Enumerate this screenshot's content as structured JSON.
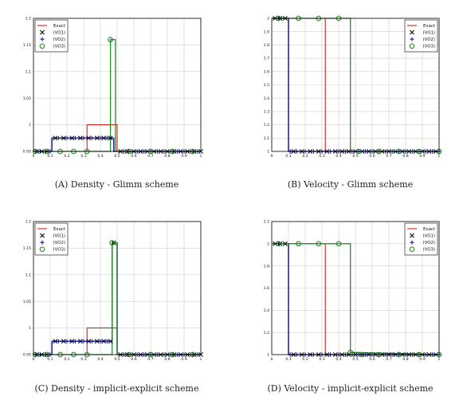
{
  "figure": {
    "captions": [
      "(A) Density - Glimm scheme",
      "(B) Velocity - Glimm scheme",
      "(C) Density - implicit-explicit scheme",
      "(D) Velocity - implicit-explicit scheme"
    ]
  },
  "chart_data": [
    {
      "id": "a",
      "type": "line",
      "title": "",
      "xlabel": "",
      "ylabel": "",
      "xlim": [
        0,
        1
      ],
      "ylim": [
        0.95,
        1.2
      ],
      "xticks": [
        "0",
        "0.1",
        "0.2",
        "0.3",
        "0.4",
        "0.5",
        "0.6",
        "0.7",
        "0.8",
        "0.9",
        "1"
      ],
      "yticks": [
        "0.95",
        "1",
        "1.05",
        "1.1",
        "1.15",
        "1.2"
      ],
      "grid": true,
      "legend_position": "top-left",
      "legend": [
        "Exact",
        "(VO1)",
        "(VO2)",
        "(VO3)"
      ],
      "series": [
        {
          "name": "Exact",
          "color": "#d42020",
          "style": "line",
          "x": [
            0,
            0.32,
            0.32,
            0.5,
            0.5,
            1
          ],
          "y": [
            0.95,
            0.95,
            1.0,
            1.0,
            0.95,
            0.95
          ]
        },
        {
          "name": "(VO1)",
          "color": "#111111",
          "style": "line+x",
          "x": [
            0,
            0.11,
            0.11,
            0.48,
            0.48,
            1
          ],
          "y": [
            0.95,
            0.95,
            0.975,
            0.975,
            0.95,
            0.95
          ],
          "markers_x": [
            0.02,
            0.05,
            0.08,
            0.13,
            0.18,
            0.23,
            0.28,
            0.33,
            0.38,
            0.42,
            0.46,
            0.52,
            0.56,
            0.6,
            0.64,
            0.68,
            0.72,
            0.76,
            0.8,
            0.84,
            0.88,
            0.92,
            0.96,
            1.0
          ]
        },
        {
          "name": "(VO2)",
          "color": "#1a1ab0",
          "style": "line+plus",
          "x": [
            0,
            0.11,
            0.11,
            0.48,
            0.48,
            1
          ],
          "y": [
            0.95,
            0.95,
            0.975,
            0.975,
            0.95,
            0.95
          ],
          "markers_x": [
            0.04,
            0.1,
            0.15,
            0.2,
            0.25,
            0.3,
            0.35,
            0.4,
            0.44,
            0.54,
            0.58,
            0.62,
            0.66,
            0.7,
            0.74,
            0.78,
            0.82,
            0.86,
            0.9,
            0.94,
            0.98
          ]
        },
        {
          "name": "(VO3)",
          "color": "#2a8a2a",
          "style": "line+o",
          "x": [
            0,
            0.46,
            0.46,
            0.49,
            0.49,
            1
          ],
          "y": [
            0.95,
            0.95,
            1.16,
            1.16,
            0.95,
            0.95
          ],
          "markers": [
            [
              0.01,
              0.95
            ],
            [
              0.08,
              0.95
            ],
            [
              0.16,
              0.95
            ],
            [
              0.24,
              0.95
            ],
            [
              0.32,
              0.95
            ],
            [
              0.46,
              1.16
            ],
            [
              0.57,
              0.95
            ],
            [
              0.7,
              0.95
            ],
            [
              0.83,
              0.95
            ],
            [
              0.95,
              0.95
            ]
          ]
        }
      ]
    },
    {
      "id": "b",
      "type": "line",
      "title": "",
      "xlabel": "",
      "ylabel": "",
      "xlim": [
        0,
        1
      ],
      "ylim": [
        1,
        2
      ],
      "xticks": [
        "0",
        "0.1",
        "0.2",
        "0.3",
        "0.4",
        "0.5",
        "0.6",
        "0.7",
        "0.8",
        "0.9",
        "1"
      ],
      "yticks": [
        "1",
        "1.1",
        "1.2",
        "1.3",
        "1.4",
        "1.5",
        "1.6",
        "1.7",
        "1.8",
        "1.9",
        "2"
      ],
      "grid": true,
      "legend_position": "top-right",
      "legend": [
        "Exact",
        "(VO1)",
        "(VO2)",
        "(VO3)"
      ],
      "series": [
        {
          "name": "Exact",
          "color": "#d42020",
          "style": "line",
          "x": [
            0,
            0.32,
            0.32,
            1
          ],
          "y": [
            2,
            2,
            1,
            1
          ]
        },
        {
          "name": "(VO1)",
          "color": "#111111",
          "style": "line+x",
          "x": [
            0,
            0.1,
            0.1,
            1
          ],
          "y": [
            2,
            2,
            1,
            1
          ],
          "markers_x": [
            0.02,
            0.05,
            0.08,
            0.13,
            0.18,
            0.23,
            0.28,
            0.33,
            0.38,
            0.42,
            0.46,
            0.5,
            0.54,
            0.58,
            0.62,
            0.66,
            0.7,
            0.74,
            0.78,
            0.82,
            0.86,
            0.9,
            0.94,
            0.98
          ]
        },
        {
          "name": "(VO2)",
          "color": "#1a1ab0",
          "style": "line+plus",
          "x": [
            0,
            0.1,
            0.1,
            1
          ],
          "y": [
            2,
            2,
            1,
            1
          ],
          "markers_x": [
            0.04,
            0.11,
            0.15,
            0.2,
            0.25,
            0.3,
            0.35,
            0.4,
            0.44,
            0.48,
            0.52,
            0.56,
            0.6,
            0.64,
            0.68,
            0.72,
            0.76,
            0.8,
            0.84,
            0.88,
            0.92,
            0.96,
            1.0
          ]
        },
        {
          "name": "(VO3)",
          "color": "#2a8a2a",
          "style": "line+o",
          "x": [
            0,
            0.47,
            0.47,
            1
          ],
          "y": [
            2,
            2,
            1,
            1
          ],
          "markers": [
            [
              0.04,
              2
            ],
            [
              0.16,
              2
            ],
            [
              0.28,
              2
            ],
            [
              0.4,
              2
            ],
            [
              0.52,
              1
            ],
            [
              0.64,
              1
            ],
            [
              0.76,
              1
            ],
            [
              0.88,
              1
            ],
            [
              1.0,
              1
            ]
          ]
        }
      ]
    },
    {
      "id": "c",
      "type": "line",
      "title": "",
      "xlabel": "",
      "ylabel": "",
      "xlim": [
        0,
        1
      ],
      "ylim": [
        0.95,
        1.2
      ],
      "xticks": [
        "0",
        "0.1",
        "0.2",
        "0.3",
        "0.4",
        "0.5",
        "0.6",
        "0.7",
        "0.8",
        "0.9",
        "1"
      ],
      "yticks": [
        "0.95",
        "1",
        "1.05",
        "1.1",
        "1.15",
        "1.2"
      ],
      "grid": true,
      "legend_position": "top-left",
      "legend": [
        "Exact",
        "(VO1)",
        "(VO2)",
        "(VO3)"
      ],
      "series": [
        {
          "name": "Exact",
          "color": "#d42020",
          "style": "line",
          "x": [
            0,
            0.32,
            0.32,
            0.5,
            0.5,
            1
          ],
          "y": [
            0.95,
            0.95,
            1.0,
            1.0,
            0.95,
            0.95
          ]
        },
        {
          "name": "(VO1)",
          "color": "#111111",
          "style": "line+x",
          "x": [
            0,
            0.11,
            0.11,
            0.47,
            0.47,
            0.5,
            0.5,
            1
          ],
          "y": [
            0.95,
            0.95,
            0.975,
            0.975,
            1.16,
            1.16,
            0.95,
            0.95
          ],
          "markers_x": [
            0.02,
            0.05,
            0.08,
            0.13,
            0.18,
            0.23,
            0.28,
            0.33,
            0.38,
            0.42,
            0.46,
            0.48,
            0.52,
            0.56,
            0.6,
            0.64,
            0.68,
            0.72,
            0.76,
            0.8,
            0.84,
            0.88,
            0.92,
            0.96,
            1.0
          ]
        },
        {
          "name": "(VO2)",
          "color": "#1a1ab0",
          "style": "line+plus",
          "x": [
            0,
            0.11,
            0.11,
            0.47,
            0.47,
            0.5,
            0.5,
            1
          ],
          "y": [
            0.95,
            0.95,
            0.975,
            0.975,
            1.16,
            1.16,
            0.95,
            0.95
          ],
          "markers_x": [
            0.04,
            0.1,
            0.15,
            0.2,
            0.25,
            0.3,
            0.35,
            0.4,
            0.44,
            0.54,
            0.58,
            0.62,
            0.66,
            0.7,
            0.74,
            0.78,
            0.82,
            0.86,
            0.9,
            0.94,
            0.98
          ]
        },
        {
          "name": "(VO3)",
          "color": "#2a8a2a",
          "style": "line+o",
          "x": [
            0,
            0.47,
            0.47,
            0.5,
            0.5,
            1
          ],
          "y": [
            0.95,
            0.95,
            1.16,
            1.16,
            0.95,
            0.95
          ],
          "markers": [
            [
              0.01,
              0.95
            ],
            [
              0.08,
              0.95
            ],
            [
              0.16,
              0.95
            ],
            [
              0.24,
              0.95
            ],
            [
              0.32,
              0.95
            ],
            [
              0.47,
              1.16
            ],
            [
              0.57,
              0.95
            ],
            [
              0.7,
              0.95
            ],
            [
              0.83,
              0.95
            ],
            [
              0.95,
              0.95
            ]
          ]
        }
      ]
    },
    {
      "id": "d",
      "type": "line",
      "title": "",
      "xlabel": "",
      "ylabel": "",
      "xlim": [
        0,
        1
      ],
      "ylim": [
        1,
        2.2
      ],
      "xticks": [
        "0",
        "0.1",
        "0.2",
        "0.3",
        "0.4",
        "0.5",
        "0.6",
        "0.7",
        "0.8",
        "0.9",
        "1"
      ],
      "yticks": [
        "1",
        "1.2",
        "1.4",
        "1.6",
        "1.8",
        "2",
        "2.2"
      ],
      "grid": true,
      "legend_position": "top-right",
      "legend": [
        "Exact",
        "(VO1)",
        "(VO2)",
        "(VO3)"
      ],
      "series": [
        {
          "name": "Exact",
          "color": "#d42020",
          "style": "line",
          "x": [
            0,
            0.32,
            0.32,
            1
          ],
          "y": [
            2,
            2,
            1,
            1
          ]
        },
        {
          "name": "(VO1)",
          "color": "#111111",
          "style": "line+x",
          "x": [
            0,
            0.1,
            0.1,
            1
          ],
          "y": [
            2,
            2,
            1,
            1
          ],
          "markers_x": [
            0.02,
            0.05,
            0.08,
            0.13,
            0.18,
            0.23,
            0.28,
            0.33,
            0.38,
            0.42,
            0.46,
            0.5,
            0.54,
            0.58,
            0.62,
            0.66,
            0.7,
            0.74,
            0.78,
            0.82,
            0.86,
            0.9,
            0.94,
            0.98
          ]
        },
        {
          "name": "(VO2)",
          "color": "#1a1ab0",
          "style": "line+plus",
          "x": [
            0,
            0.1,
            0.1,
            1
          ],
          "y": [
            2,
            2,
            1,
            1
          ],
          "markers_x": [
            0.04,
            0.11,
            0.15,
            0.2,
            0.25,
            0.3,
            0.35,
            0.4,
            0.44,
            0.48,
            0.52,
            0.56,
            0.6,
            0.64,
            0.68,
            0.72,
            0.76,
            0.8,
            0.84,
            0.88,
            0.92,
            0.96,
            1.0
          ]
        },
        {
          "name": "(VO3)",
          "color": "#2a8a2a",
          "style": "line+o",
          "x": [
            0,
            0.47,
            0.47,
            1
          ],
          "y": [
            2,
            2,
            1.02,
            1
          ],
          "markers": [
            [
              0.04,
              2
            ],
            [
              0.16,
              2
            ],
            [
              0.28,
              2
            ],
            [
              0.4,
              2
            ],
            [
              0.47,
              1.02
            ],
            [
              0.54,
              1
            ],
            [
              0.64,
              1
            ],
            [
              0.76,
              1
            ],
            [
              0.88,
              1
            ],
            [
              1.0,
              1
            ]
          ]
        }
      ]
    }
  ]
}
